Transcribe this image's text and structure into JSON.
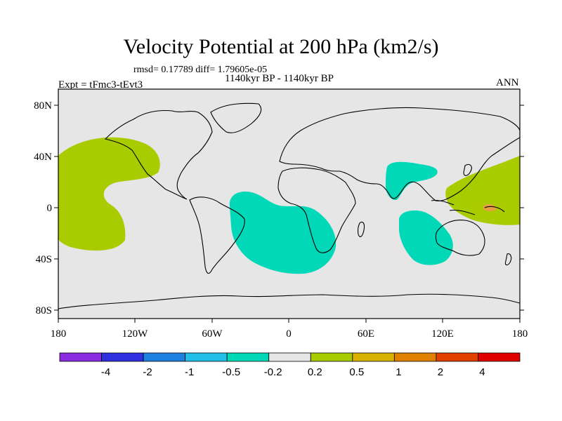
{
  "title": "Velocity Potential at 200 hPa (km2/s)",
  "stats": "rmsd= 0.17789 diff= 1.79605e-05",
  "period": "1140kyr BP - 1140kyr BP",
  "expt": "Expt = tFmc3-tEvt3",
  "season": "ANN",
  "map": {
    "lat_ticks": [
      "80N",
      "40N",
      "0",
      "40S",
      "80S"
    ],
    "lon_ticks": [
      "180",
      "120W",
      "60W",
      "0",
      "60E",
      "120E",
      "180"
    ],
    "background_color": "#e6e6e6",
    "regions": [
      {
        "name": "north-pacific-positive",
        "level": "0.2 to 0.5",
        "color": "#a8cc00"
      },
      {
        "name": "south-atlantic-negative",
        "level": "-0.5 to -0.2",
        "color": "#00d8b8"
      },
      {
        "name": "south-asia-negative",
        "level": "-0.5 to -0.2",
        "color": "#00d8b8"
      },
      {
        "name": "indian-ocean-negative",
        "level": "-0.5 to -0.2",
        "color": "#00d8b8"
      },
      {
        "name": "west-pacific-positive",
        "level": "0.2 to 0.5",
        "color": "#a8cc00"
      },
      {
        "name": "new-guinea-peak",
        "level": "0.5 to 1",
        "color": "#e8a040"
      }
    ]
  },
  "colorbar": {
    "colors": [
      "#8a2be2",
      "#3030e0",
      "#1e80e0",
      "#20c0e8",
      "#00d8b8",
      "#e6e6e6",
      "#a8cc00",
      "#d8b000",
      "#e08000",
      "#e04000",
      "#e00000"
    ],
    "labels": [
      "-4",
      "-2",
      "-1",
      "-0.5",
      "-0.2",
      "0.2",
      "0.5",
      "1",
      "2",
      "4"
    ]
  }
}
